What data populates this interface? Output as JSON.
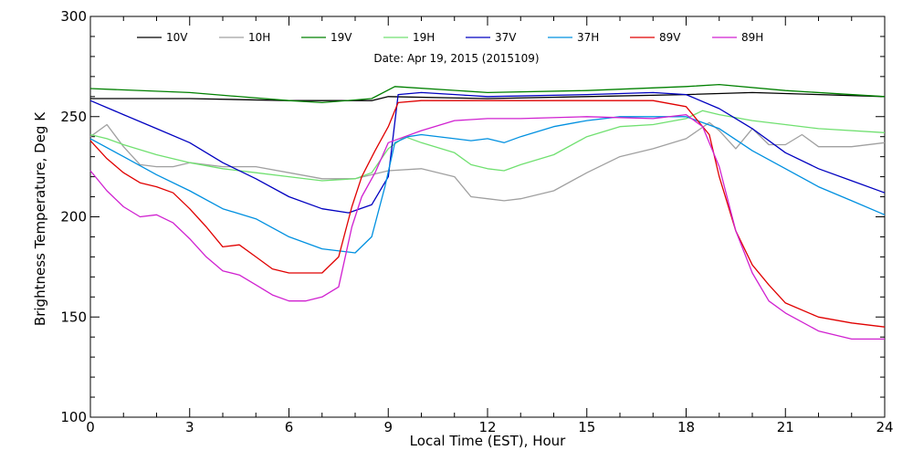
{
  "chart_data": {
    "type": "line",
    "title": "",
    "subtitle": "Date: Apr 19, 2015 (2015109)",
    "xlabel": "Local Time (EST), Hour",
    "ylabel": "Brightness Temperature, Deg K",
    "xlim": [
      0,
      24
    ],
    "ylim": [
      100,
      300
    ],
    "xticks": [
      0,
      3,
      6,
      9,
      12,
      15,
      18,
      21,
      24
    ],
    "yticks": [
      100,
      150,
      200,
      250,
      300
    ],
    "grid": false,
    "legend_position": "top",
    "series": [
      {
        "name": "10V",
        "color": "#000000",
        "x": [
          0,
          3,
          6,
          8.5,
          9,
          12,
          15,
          18,
          20,
          24
        ],
        "y": [
          259,
          259,
          258,
          258,
          260,
          259,
          260,
          261,
          262,
          260
        ]
      },
      {
        "name": "10H",
        "color": "#a0a0a0",
        "x": [
          0,
          0.5,
          1,
          1.5,
          2,
          2.5,
          3,
          4,
          5,
          6,
          7,
          8,
          9,
          10,
          11,
          11.5,
          12,
          12.5,
          13,
          14,
          15,
          16,
          17,
          18,
          18.7,
          19,
          19.5,
          20,
          20.5,
          21,
          21.5,
          22,
          23,
          24
        ],
        "y": [
          240,
          246,
          235,
          226,
          225,
          225,
          227,
          225,
          225,
          222,
          219,
          219,
          223,
          224,
          220,
          210,
          209,
          208,
          209,
          213,
          222,
          230,
          234,
          239,
          247,
          243,
          234,
          244,
          236,
          236,
          241,
          235,
          235,
          237
        ]
      },
      {
        "name": "19V",
        "color": "#008000",
        "x": [
          0,
          3,
          6,
          7,
          8.5,
          9.2,
          12,
          15,
          18,
          19,
          21,
          24
        ],
        "y": [
          264,
          262,
          258,
          257,
          259,
          265,
          262,
          263,
          265,
          266,
          263,
          260
        ]
      },
      {
        "name": "19H",
        "color": "#70e070",
        "x": [
          0,
          0.5,
          1,
          2,
          3,
          4,
          5,
          6,
          7,
          8,
          8.5,
          9,
          9.5,
          10,
          11,
          11.5,
          12,
          12.5,
          13,
          14,
          15,
          16,
          17,
          18,
          18.5,
          19,
          20,
          21,
          22,
          24
        ],
        "y": [
          241,
          239,
          236,
          231,
          227,
          224,
          222,
          220,
          218,
          219,
          222,
          234,
          240,
          237,
          232,
          226,
          224,
          223,
          226,
          231,
          240,
          245,
          246,
          249,
          253,
          251,
          248,
          246,
          244,
          242
        ]
      },
      {
        "name": "37V",
        "color": "#0000c0",
        "x": [
          0,
          1,
          2,
          3,
          4,
          5,
          6,
          7,
          7.8,
          8.5,
          9,
          9.3,
          10,
          12,
          15,
          17,
          18,
          19,
          20,
          21,
          22,
          23,
          24
        ],
        "y": [
          258,
          251,
          244,
          237,
          227,
          219,
          210,
          204,
          202,
          206,
          220,
          261,
          262,
          260,
          261,
          262,
          261,
          254,
          244,
          232,
          224,
          218,
          212
        ]
      },
      {
        "name": "37H",
        "color": "#0090e0",
        "x": [
          0,
          1,
          2,
          3,
          4,
          5,
          6,
          7,
          8,
          8.5,
          8.9,
          9.2,
          9.6,
          10,
          11,
          11.5,
          12,
          12.5,
          13,
          14,
          15,
          16,
          17,
          18,
          19,
          20,
          21,
          22,
          23,
          24
        ],
        "y": [
          239,
          230,
          221,
          213,
          204,
          199,
          190,
          184,
          182,
          190,
          215,
          237,
          240,
          241,
          239,
          238,
          239,
          237,
          240,
          245,
          248,
          250,
          250,
          250,
          244,
          233,
          224,
          215,
          208,
          201
        ]
      },
      {
        "name": "89V",
        "color": "#e00000",
        "x": [
          0,
          0.5,
          1,
          1.5,
          2,
          2.5,
          3,
          3.5,
          4,
          4.5,
          5,
          5.5,
          6,
          6.5,
          7,
          7.5,
          7.9,
          8.2,
          8.6,
          9,
          9.3,
          10,
          12,
          15,
          17,
          18,
          18.7,
          19,
          19.5,
          20,
          20.5,
          21,
          22,
          23,
          24
        ],
        "y": [
          238,
          229,
          222,
          217,
          215,
          212,
          204,
          195,
          185,
          186,
          180,
          174,
          172,
          172,
          172,
          180,
          205,
          220,
          233,
          245,
          257,
          258,
          258,
          258,
          258,
          255,
          241,
          220,
          193,
          176,
          166,
          157,
          150,
          147,
          145
        ]
      },
      {
        "name": "89H",
        "color": "#d020d0",
        "x": [
          0,
          0.5,
          1,
          1.5,
          2,
          2.5,
          3,
          3.5,
          4,
          4.5,
          5,
          5.5,
          6,
          6.5,
          7,
          7.5,
          7.9,
          8.2,
          8.6,
          9,
          9.5,
          10,
          11,
          12,
          13,
          15,
          17,
          18,
          18.5,
          19,
          19.5,
          20,
          20.5,
          21,
          22,
          23,
          24
        ],
        "y": [
          223,
          213,
          205,
          200,
          201,
          197,
          189,
          180,
          173,
          171,
          166,
          161,
          158,
          158,
          160,
          165,
          195,
          210,
          222,
          237,
          240,
          243,
          248,
          249,
          249,
          250,
          249,
          251,
          245,
          225,
          193,
          172,
          158,
          152,
          143,
          139,
          139
        ]
      }
    ]
  }
}
